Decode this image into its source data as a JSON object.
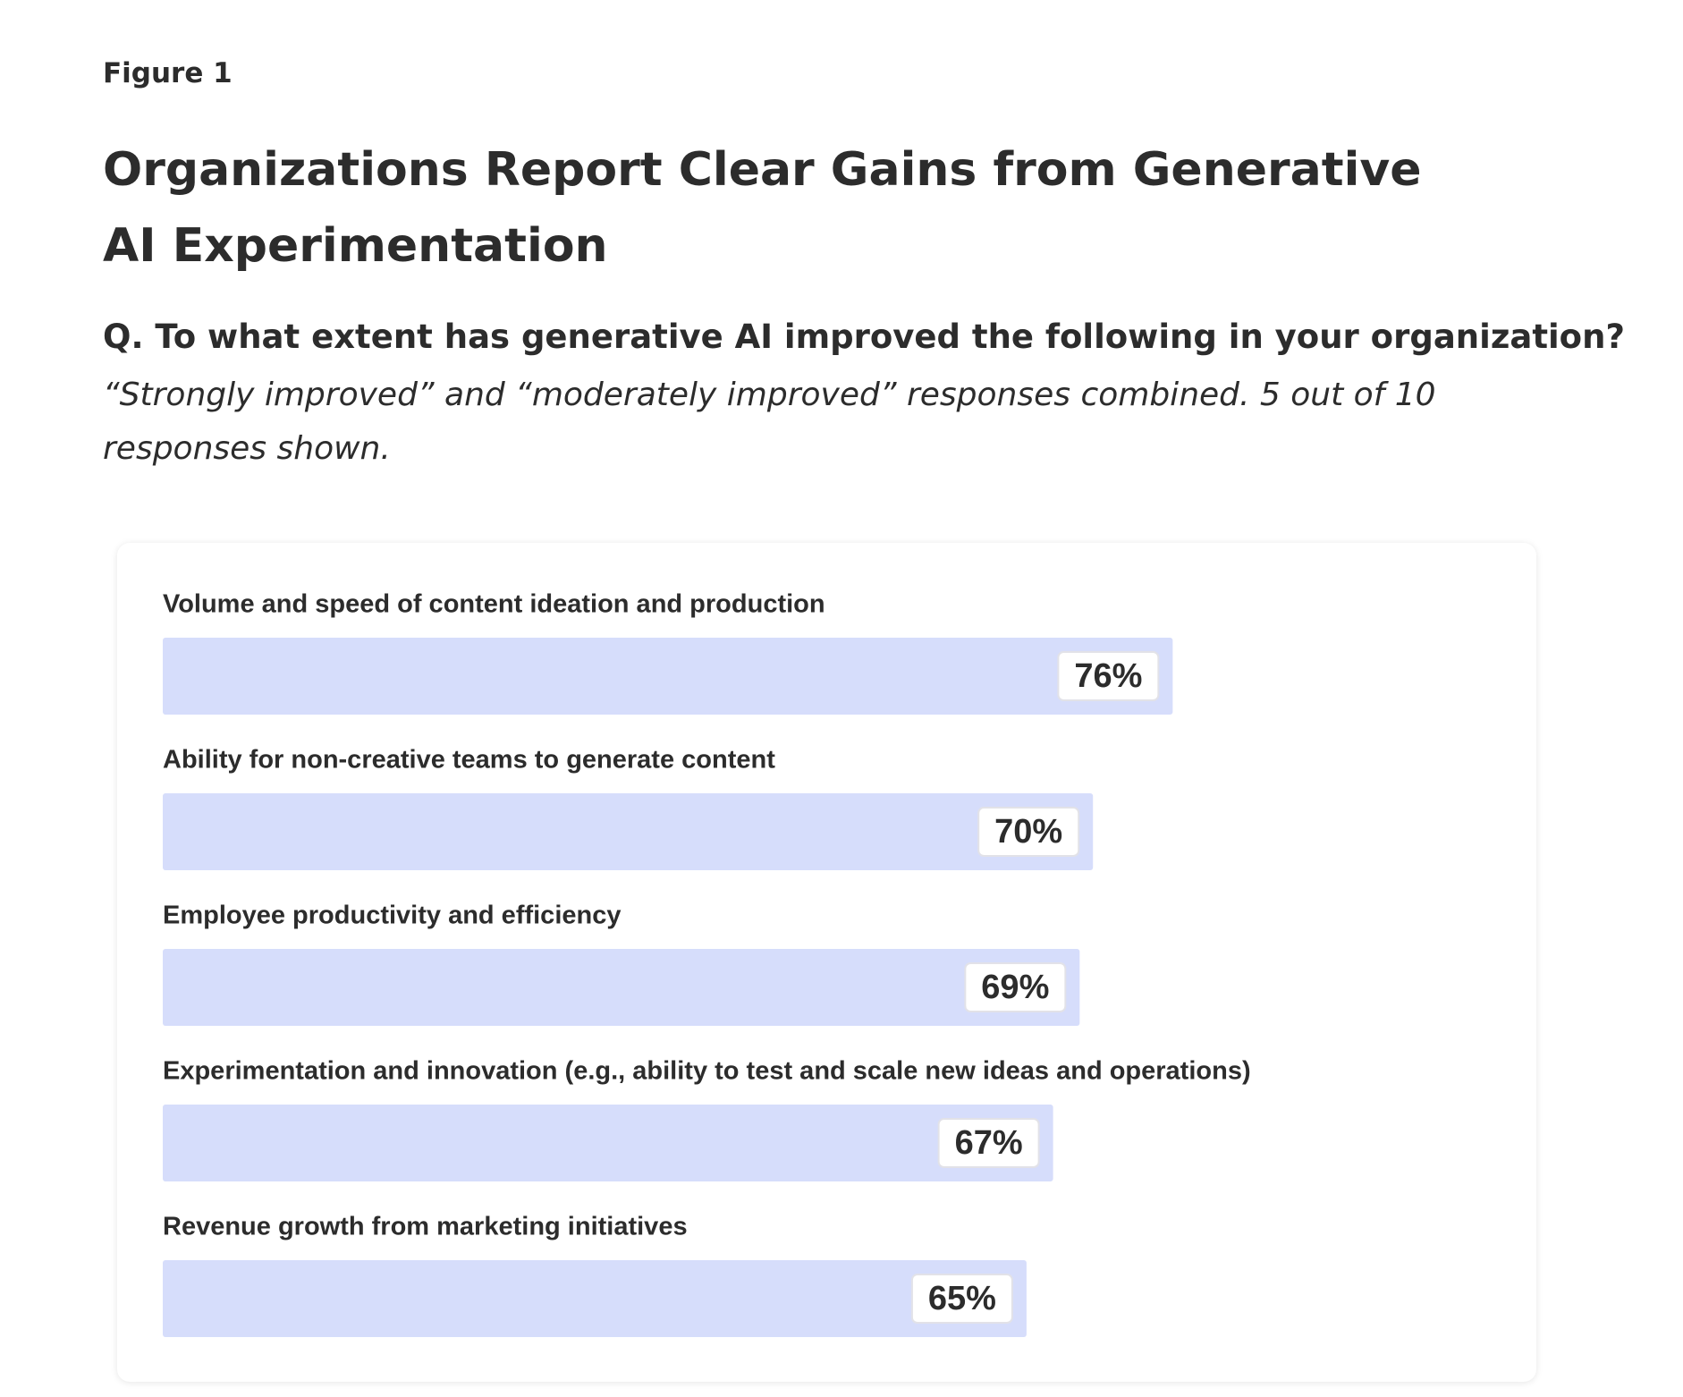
{
  "figure_label": "Figure 1",
  "chart_data": {
    "type": "hbar",
    "title": "Organizations Report Clear Gains from Generative AI Experimentation",
    "question": "Q. To what extent has generative AI improved the following in your organization?",
    "subtitle": "“Strongly improved” and “moderately improved” responses combined. 5 out of 10 responses shown.",
    "categories": [
      "Volume and speed of content ideation and production",
      "Ability for non-creative teams to generate content",
      "Employee productivity and efficiency",
      "Experimentation and innovation (e.g., ability to test and scale new ideas and operations)",
      "Revenue growth from marketing initiatives"
    ],
    "values": [
      76,
      70,
      69,
      67,
      65
    ],
    "value_labels": [
      "76%",
      "70%",
      "69%",
      "67%",
      "65%"
    ],
    "color": "#d6ddfb",
    "xlim": [
      0,
      100
    ]
  }
}
